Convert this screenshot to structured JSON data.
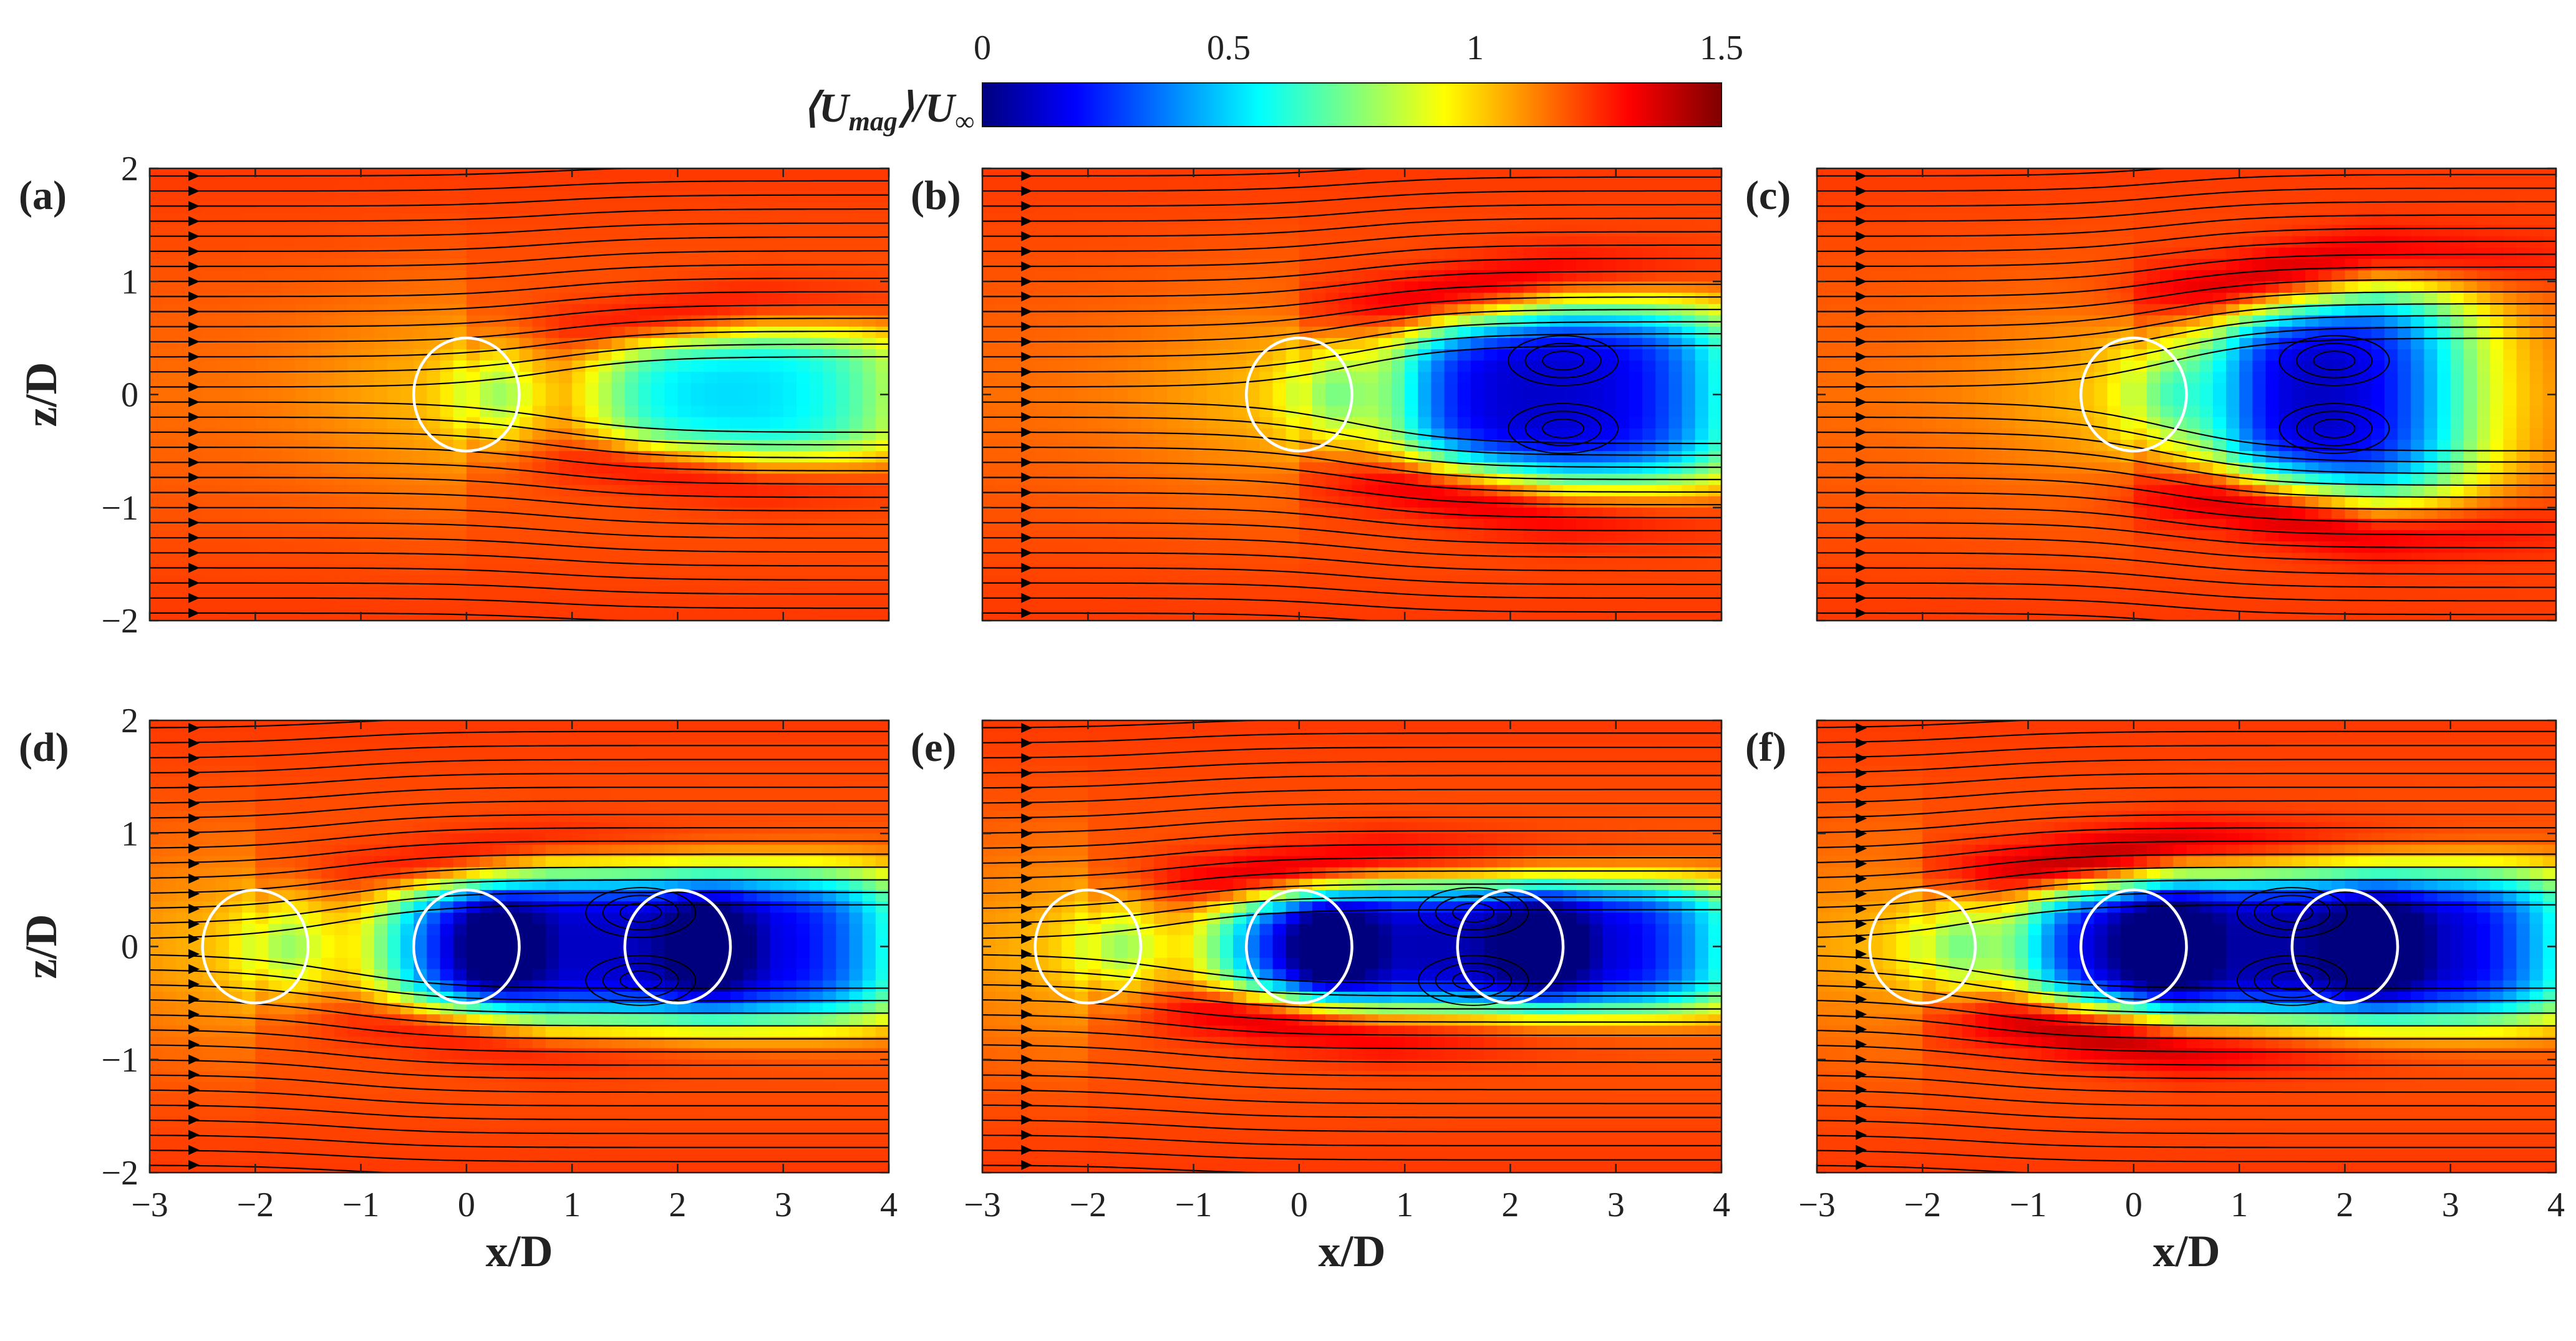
{
  "chart_data": {
    "type": "heatmap",
    "description_variable": "mean velocity magnitude",
    "colorbar": {
      "label": "⟨U",
      "label_sub": "mag",
      "label_tail": "⟩/U",
      "label_tail_sub": "∞",
      "ticks": [
        "0",
        "0.5",
        "1",
        "1.5"
      ],
      "range": [
        0,
        1.5
      ],
      "colormap": [
        "#00007f",
        "#0000ff",
        "#007fff",
        "#00ffff",
        "#7fff7f",
        "#ffff00",
        "#ff7f00",
        "#ff0000",
        "#7f0000"
      ]
    },
    "xlim": [
      -3,
      4
    ],
    "ylim": [
      -2,
      2
    ],
    "x_ticks": [
      "−3",
      "−2",
      "−1",
      "0",
      "1",
      "2",
      "3",
      "4"
    ],
    "y_ticks": [
      "2",
      "1",
      "0",
      "−1",
      "−2"
    ],
    "xlabel": "x/D",
    "ylabel": "z/D",
    "panels": [
      {
        "label": "(a)",
        "cylinders": [
          0
        ],
        "bubble_start": 1.3,
        "bubble_end": 4.0,
        "bubble_halfwidth": 0.62,
        "core_value": 0.5,
        "shear_value": 1.28
      },
      {
        "label": "(b)",
        "cylinders": [
          0
        ],
        "bubble_start": 1.0,
        "bubble_end": 4.0,
        "bubble_halfwidth": 0.85,
        "core_value": 0.1,
        "shear_value": 1.38
      },
      {
        "label": "(c)",
        "cylinders": [
          0
        ],
        "bubble_start": 0.8,
        "bubble_end": 3.0,
        "bubble_halfwidth": 1.0,
        "core_value": 0.05,
        "shear_value": 1.42
      },
      {
        "label": "(d)",
        "cylinders": [
          -2,
          0,
          2
        ],
        "bubble_start": -0.7,
        "bubble_end": 4.0,
        "bubble_halfwidth": 0.7,
        "core_value": 0.1,
        "shear_value": 1.28
      },
      {
        "label": "(e)",
        "cylinders": [
          -2,
          0,
          2
        ],
        "bubble_start": -0.7,
        "bubble_end": 4.0,
        "bubble_halfwidth": 0.6,
        "core_value": 0.08,
        "shear_value": 1.38
      },
      {
        "label": "(f)",
        "cylinders": [
          -2,
          0,
          2
        ],
        "bubble_start": -1.0,
        "bubble_end": 4.0,
        "bubble_halfwidth": 0.7,
        "core_value": 0.05,
        "shear_value": 1.45
      }
    ],
    "freestream_value": 1.15,
    "cylinder_diameter": 1.0
  }
}
